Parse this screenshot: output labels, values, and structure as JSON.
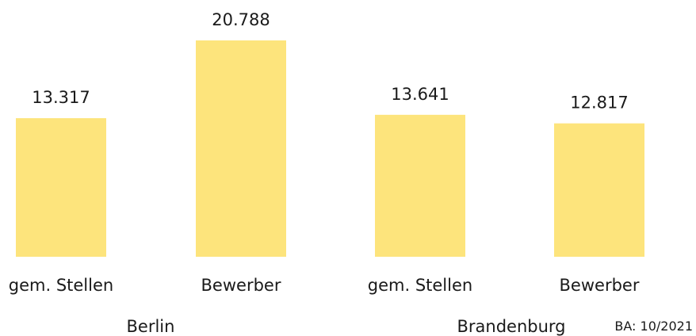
{
  "chart_data": {
    "type": "bar",
    "title": "",
    "categories": [
      "gem. Stellen",
      "Bewerber",
      "gem. Stellen",
      "Bewerber"
    ],
    "groups": [
      "Berlin",
      "Brandenburg"
    ],
    "values": [
      13317,
      20788,
      13641,
      12817
    ],
    "value_labels": [
      "13.317",
      "20.788",
      "13.641",
      "12.817"
    ],
    "ylim": [
      0,
      23000
    ],
    "grid": false,
    "legend": "none",
    "bar_color": "#FDE47C",
    "source": "BA: 10/2021"
  }
}
